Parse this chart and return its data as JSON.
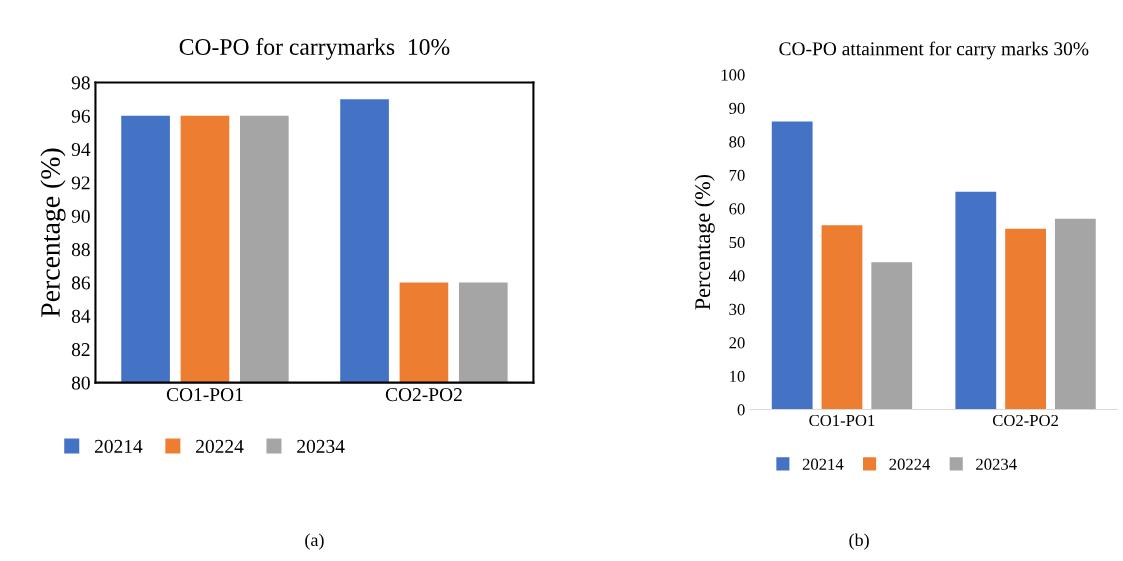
{
  "chart_data": [
    {
      "type": "bar",
      "title": "CO-PO for carrymarks  10%",
      "ylabel": "Percentage (%)",
      "categories": [
        "CO1-PO1",
        "CO2-PO2"
      ],
      "series": [
        {
          "name": "20214",
          "color": "#4472c4",
          "values": [
            96,
            97
          ]
        },
        {
          "name": "20224",
          "color": "#ed7d31",
          "values": [
            96,
            86
          ]
        },
        {
          "name": "20234",
          "color": "#a5a5a5",
          "values": [
            96,
            86
          ]
        }
      ],
      "ylim": [
        80,
        98
      ],
      "yticks": [
        80,
        82,
        84,
        86,
        88,
        90,
        92,
        94,
        96,
        98
      ],
      "grid": false,
      "legend": "bottom",
      "annotations": [
        "(a)"
      ]
    },
    {
      "type": "bar",
      "title": "CO-PO attainment for carry marks 30%",
      "ylabel": "Percentage (%)",
      "categories": [
        "CO1-PO1",
        "CO2-PO2"
      ],
      "series": [
        {
          "name": "20214",
          "color": "#4472c4",
          "values": [
            86,
            65
          ]
        },
        {
          "name": "20224",
          "color": "#ed7d31",
          "values": [
            55,
            54
          ]
        },
        {
          "name": "20234",
          "color": "#a5a5a5",
          "values": [
            44,
            57
          ]
        }
      ],
      "ylim": [
        0,
        100
      ],
      "yticks": [
        0,
        10,
        20,
        30,
        40,
        50,
        60,
        70,
        80,
        90,
        100
      ],
      "grid": false,
      "legend": "bottom",
      "annotations": [
        "(b)"
      ]
    }
  ]
}
